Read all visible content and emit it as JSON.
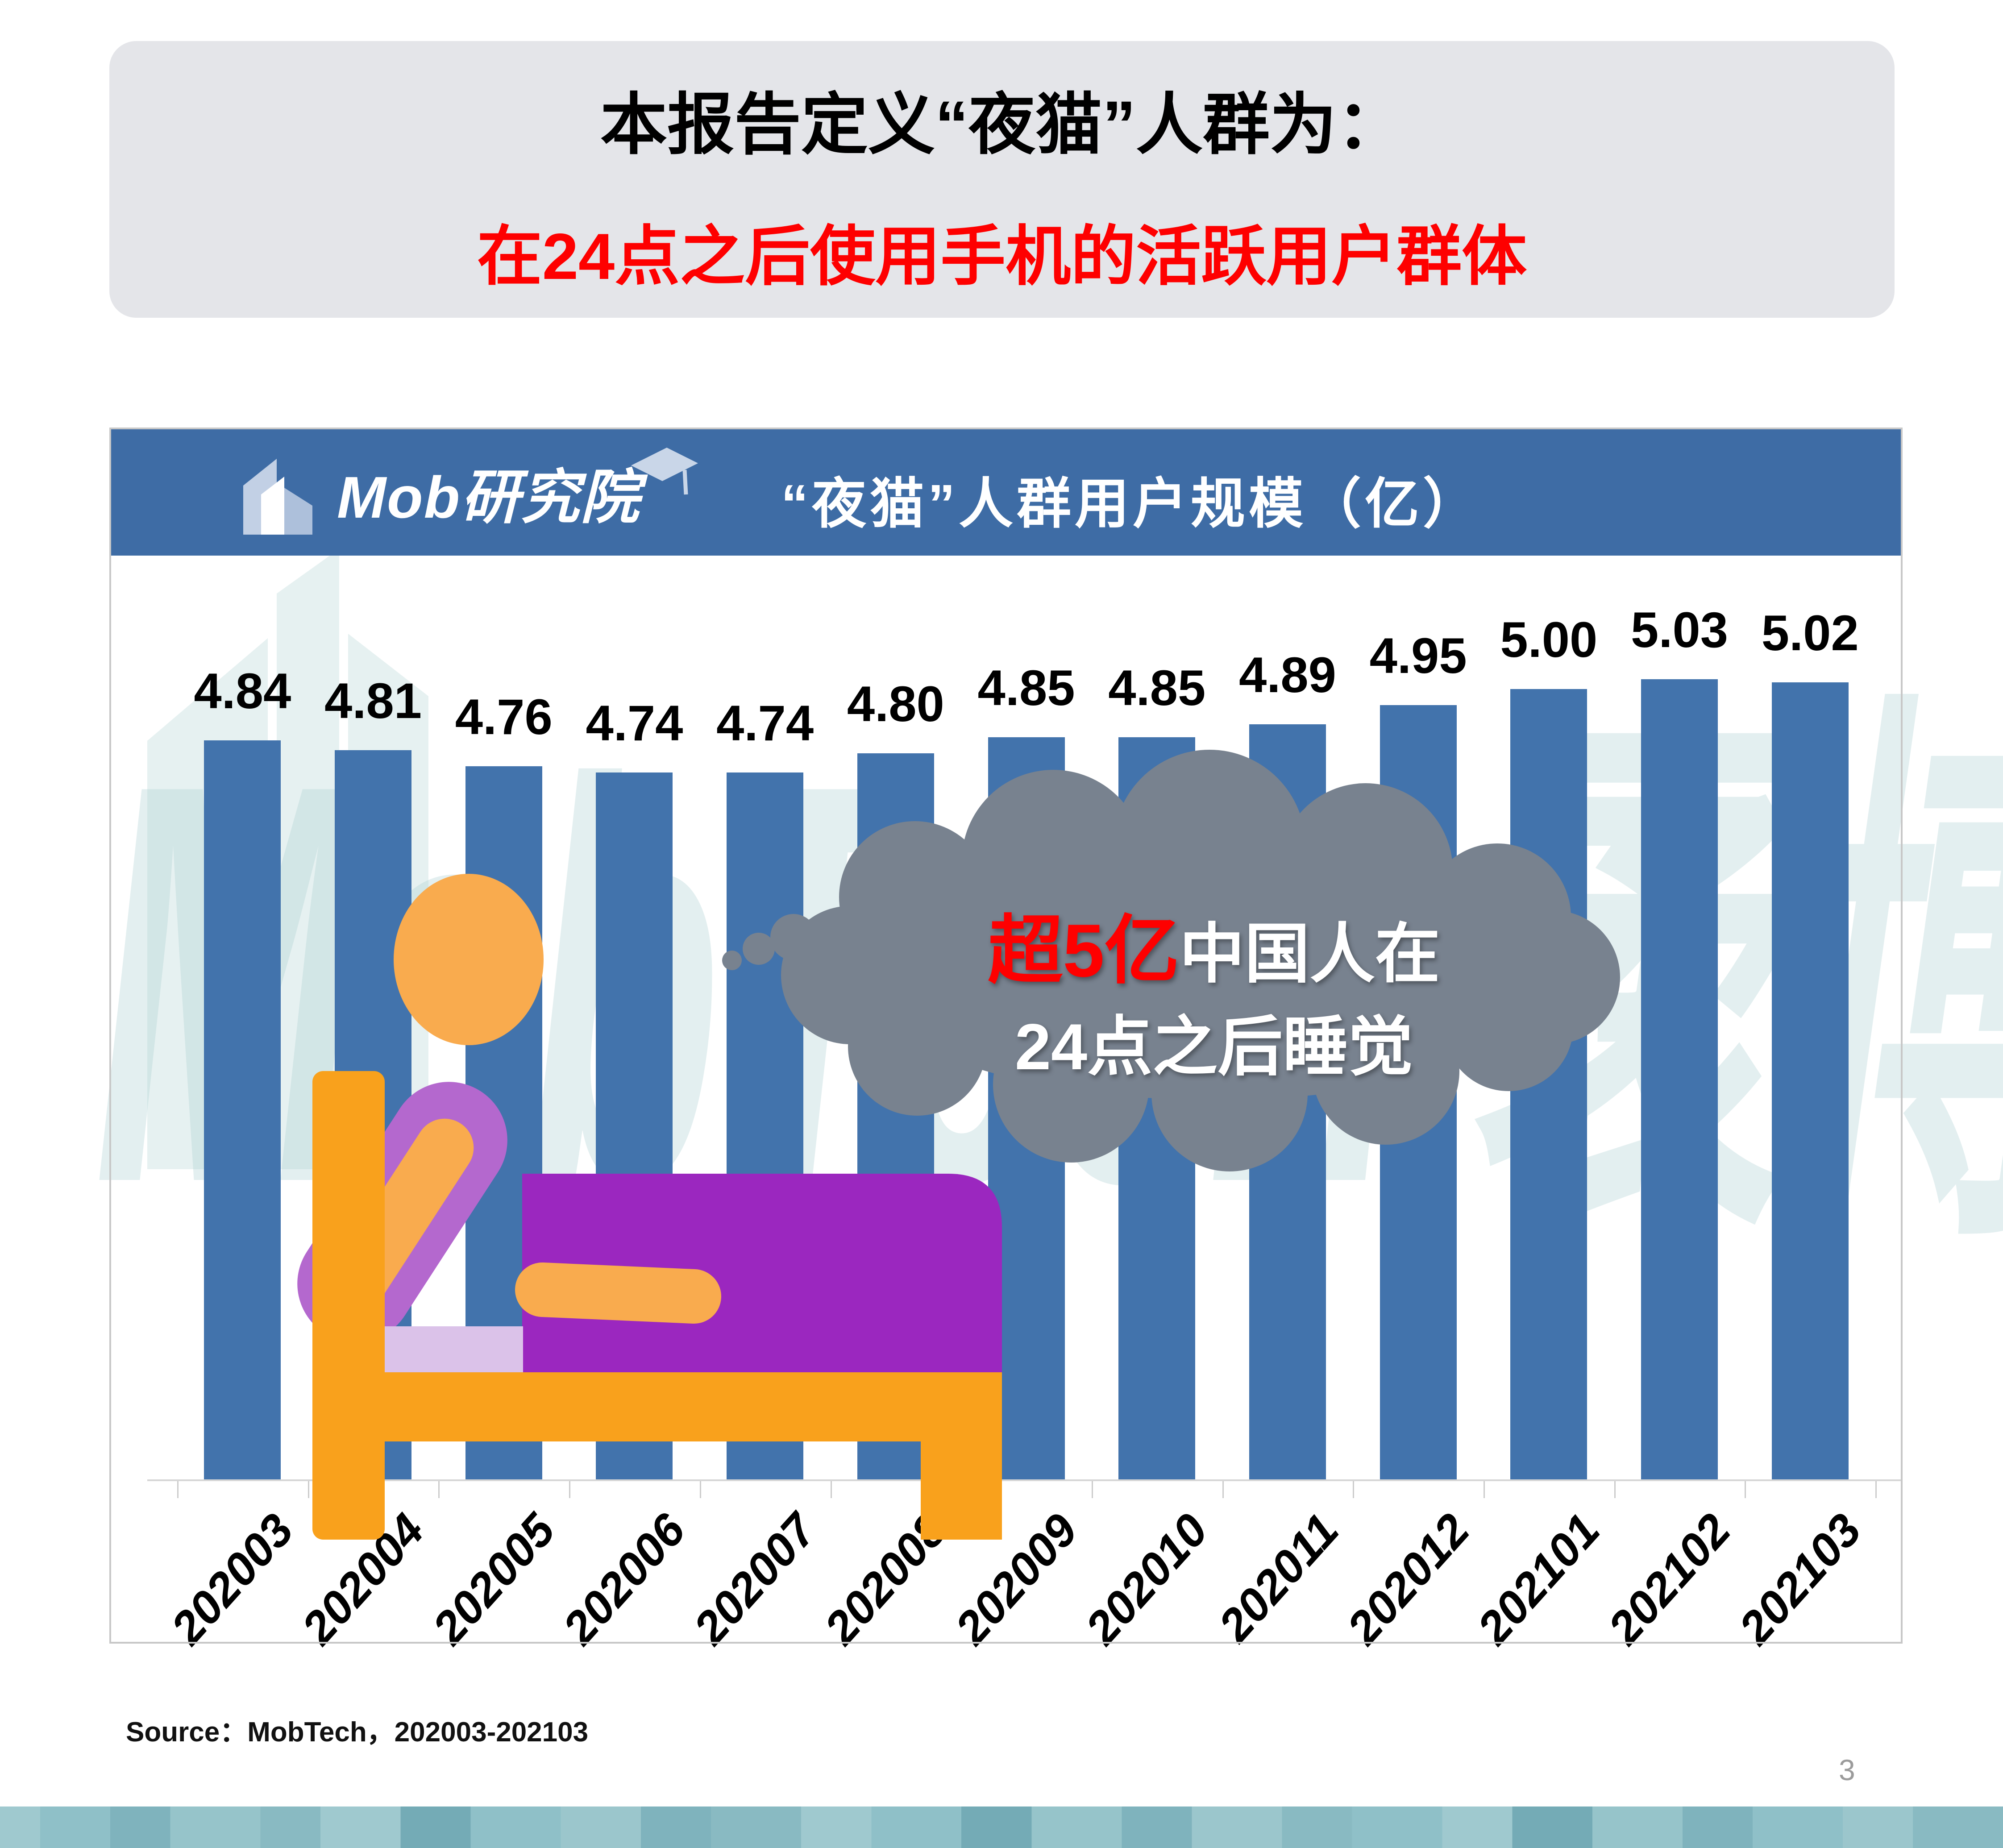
{
  "slide": {
    "title_line1": "本报告定义“夜猫”人群为：",
    "title_line2": "在24点之后使用手机的活跃用户群体",
    "source": "Source：MobTech，202003-202103",
    "page_number": "3",
    "watermark": "MobTech 袤博"
  },
  "chart_header": {
    "logo_text": "Mob研究院",
    "title": "“夜猫”人群用户规模（亿）"
  },
  "callout": {
    "highlight": "超5亿",
    "line1_rest": "中国人在",
    "line2": "24点之后睡觉"
  },
  "chart_data": {
    "type": "bar",
    "title": "“夜猫”人群用户规模（亿）",
    "unit": "亿",
    "categories": [
      "202003",
      "202004",
      "202005",
      "202006",
      "202007",
      "202008",
      "202009",
      "202010",
      "202011",
      "202012",
      "202101",
      "202102",
      "202103"
    ],
    "values": [
      4.84,
      4.81,
      4.76,
      4.74,
      4.74,
      4.8,
      4.85,
      4.85,
      4.89,
      4.95,
      5.0,
      5.03,
      5.02
    ],
    "value_labels_shown": true,
    "x_labels_rotated_deg": -48,
    "ylim": [
      2.54,
      5.45
    ],
    "grid": false,
    "legend": false,
    "bar_color": "#4273AC"
  },
  "colors": {
    "header_blue": "#3E6CA5",
    "bar_blue": "#4273AC",
    "title_box_bg": "#E4E5E9",
    "accent_red": "#FE0000",
    "cloud_gray": "#78828F",
    "bed_orange": "#F9A11C",
    "person_orange": "#F9AB4E",
    "blanket_purple": "#9B27BF",
    "body_purple": "#B468CE",
    "pillow_purple": "#DBC2E9",
    "footer_teal": "#8FC0C8"
  }
}
